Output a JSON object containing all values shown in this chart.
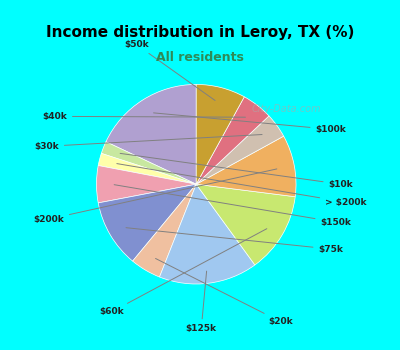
{
  "title": "Income distribution in Leroy, TX (%)",
  "subtitle": "All residents",
  "title_color": "#000000",
  "subtitle_color": "#2e8b57",
  "background_outer": "#00ffff",
  "background_inner": "#e8f5e8",
  "watermark": "City-Data.com",
  "labels": [
    "$100k",
    "$10k",
    "> $200k",
    "$150k",
    "$75k",
    "$20k",
    "$125k",
    "$60k",
    "$200k",
    "$30k",
    "$40k",
    "$50k"
  ],
  "sizes": [
    18,
    2,
    2,
    6,
    11,
    5,
    16,
    13,
    10,
    4,
    5,
    8
  ],
  "colors": [
    "#b0a0d0",
    "#c8e8a0",
    "#ffffaa",
    "#f0a0b0",
    "#8090d0",
    "#f0c0a0",
    "#a0c8f0",
    "#c8e870",
    "#f0b060",
    "#d0c0b0",
    "#e07080",
    "#c8a030"
  ],
  "startangle": 90
}
